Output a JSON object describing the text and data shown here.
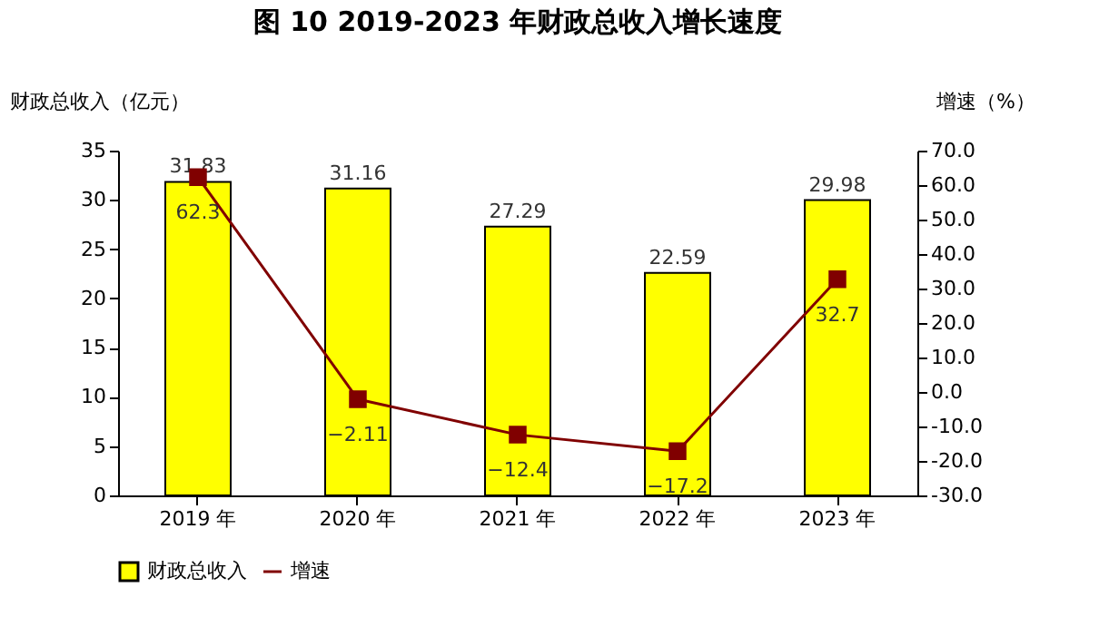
{
  "chart_data": {
    "type": "bar",
    "title": "图 10 2019-2023 年财政总收入增长速度",
    "ylabel": "财政总收入（亿元）",
    "y2label": "增速（%）",
    "categories": [
      "2019 年",
      "2020 年",
      "2021 年",
      "2022 年",
      "2023 年"
    ],
    "series": [
      {
        "name": "财政总收入",
        "color": "#ffff00",
        "values": [
          31.83,
          31.16,
          27.29,
          22.59,
          29.98
        ]
      },
      {
        "name": "增速",
        "type": "line",
        "axis": "y2",
        "color": "#800000",
        "marker": "square",
        "values": [
          62.3,
          -2.11,
          -12.4,
          -17.2,
          32.7
        ]
      }
    ],
    "ylim": [
      0,
      35
    ],
    "yticks": [
      0,
      5,
      10,
      15,
      20,
      25,
      30,
      35
    ],
    "y2lim": [
      -30,
      70
    ],
    "y2ticks": [
      {
        "value": -30,
        "label": "-30.0"
      },
      {
        "value": -20,
        "label": "-20.0"
      },
      {
        "value": -10,
        "label": "-10.0"
      },
      {
        "value": 0,
        "label": "0.0"
      },
      {
        "value": 10,
        "label": "10.0"
      },
      {
        "value": 20,
        "label": "20.0"
      },
      {
        "value": 30,
        "label": "30.0"
      },
      {
        "value": 40,
        "label": "40.0"
      },
      {
        "value": 50,
        "label": "50.0"
      },
      {
        "value": 60,
        "label": "60.0"
      },
      {
        "value": 70,
        "label": "70.0"
      }
    ],
    "data_labels": true,
    "grid": false,
    "legend": "bottom",
    "line_style": "solid"
  }
}
